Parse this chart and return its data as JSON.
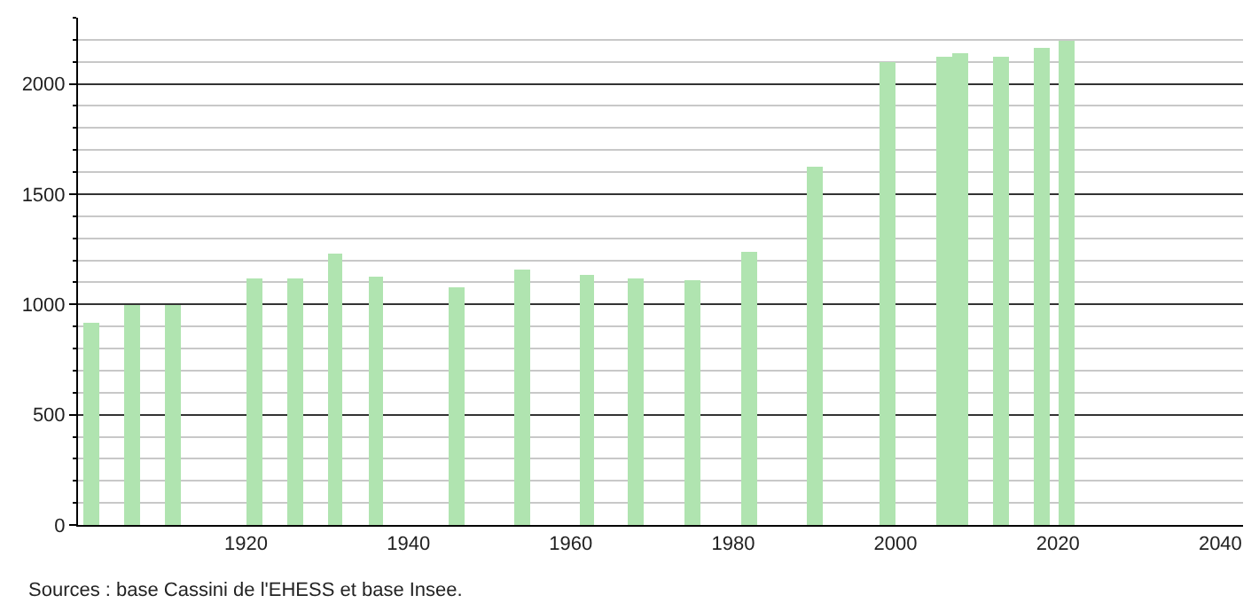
{
  "chart_data": {
    "type": "bar",
    "x": [
      1901,
      1906,
      1911,
      1921,
      1926,
      1931,
      1936,
      1946,
      1954,
      1962,
      1968,
      1975,
      1982,
      1990,
      1999,
      2006,
      2008,
      2013,
      2018,
      2021
    ],
    "values": [
      915,
      1000,
      1000,
      1120,
      1120,
      1230,
      1127,
      1075,
      1160,
      1135,
      1118,
      1110,
      1240,
      1627,
      2095,
      2122,
      2138,
      2122,
      2162,
      2194
    ],
    "color": "#b0e4b0",
    "xlim": [
      1899.3,
      2042.8
    ],
    "xticks": [
      1920,
      1940,
      1960,
      1980,
      2000,
      2020,
      2040
    ],
    "ylim": [
      0,
      2300
    ],
    "yticks": [
      0,
      500,
      1000,
      1500,
      2000
    ],
    "grid": "y",
    "annotations": [
      "Sources : base Cassini de l'EHESS et base Insee."
    ]
  }
}
